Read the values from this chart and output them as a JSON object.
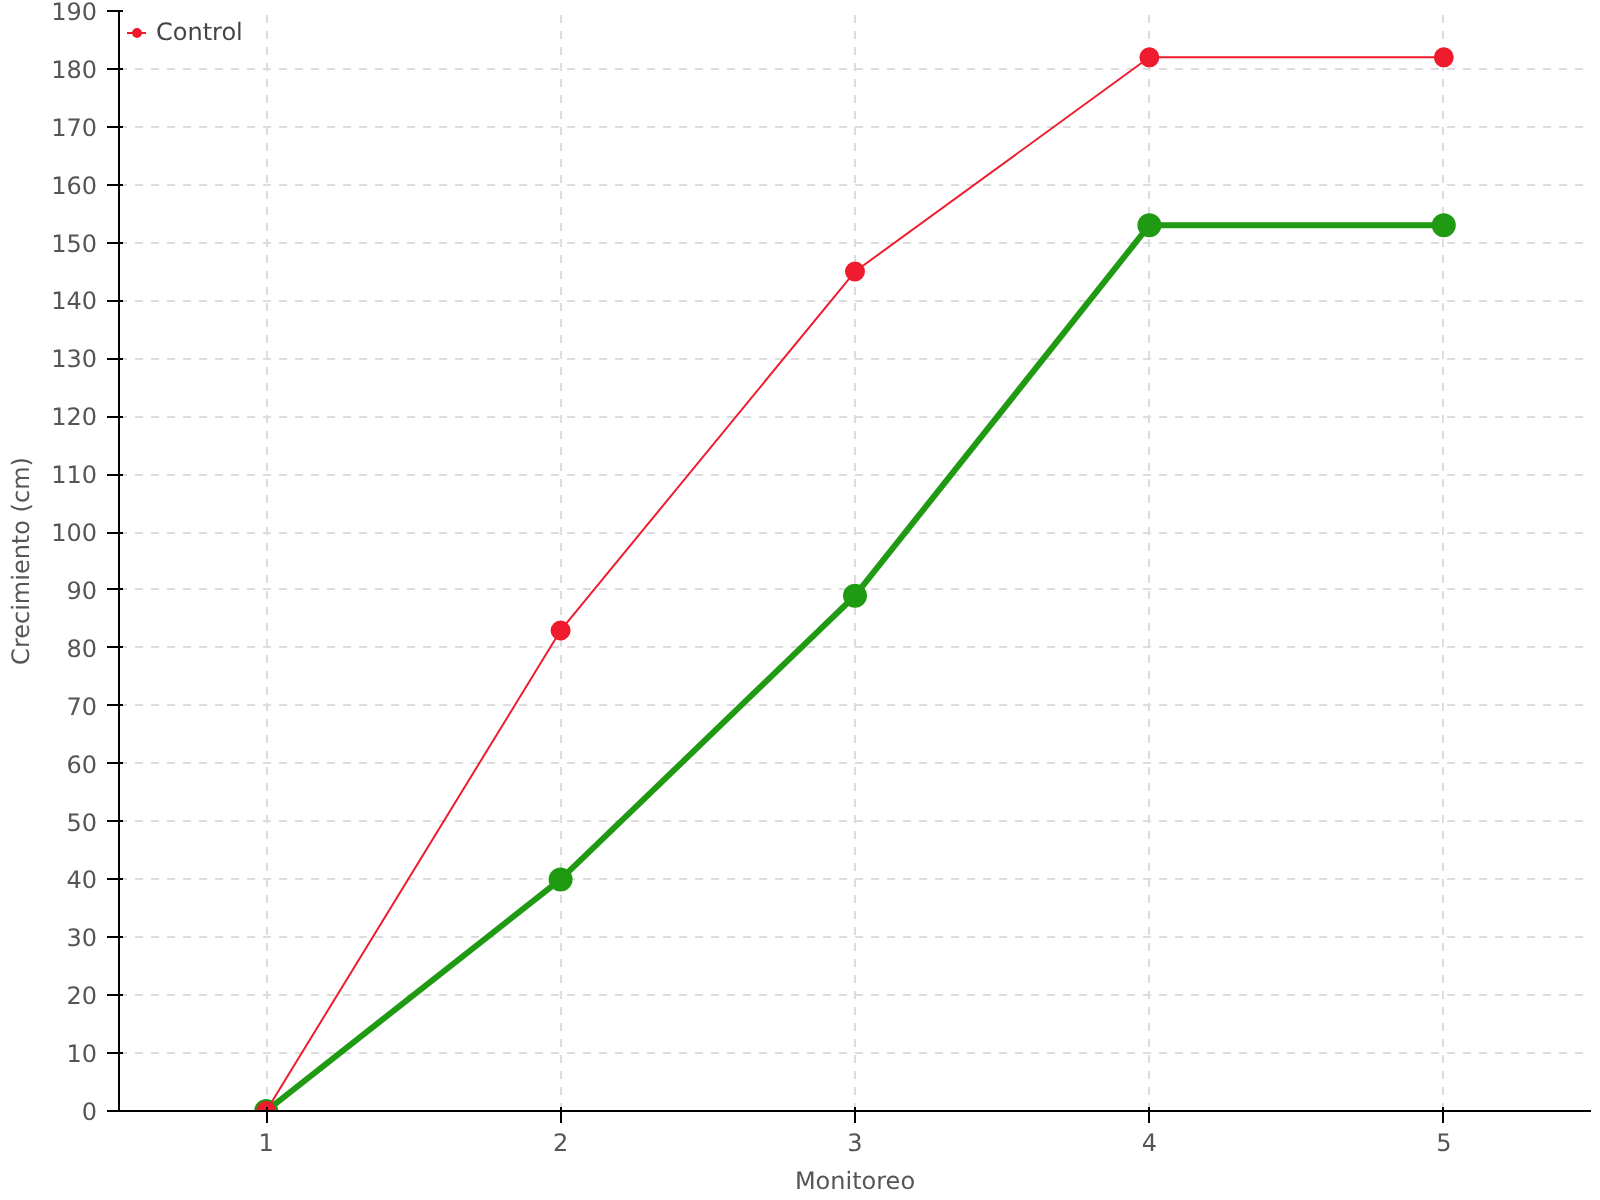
{
  "chart_data": {
    "type": "line",
    "xlabel": "Monitoreo",
    "ylabel": "Crecimiento (cm)",
    "x": [
      1,
      2,
      3,
      4,
      5
    ],
    "series": [
      {
        "color": "#1f9a12",
        "values": [
          0,
          40,
          89,
          153,
          153
        ]
      },
      {
        "name": "Control",
        "color": "#ee1c2e",
        "values": [
          0,
          83,
          145,
          182,
          182
        ]
      }
    ],
    "xlim": [
      0.5,
      5.5
    ],
    "xticks": [
      1,
      2,
      3,
      4,
      5
    ],
    "ylim": [
      0,
      190
    ],
    "yticks": [
      0,
      10,
      20,
      30,
      40,
      50,
      60,
      70,
      80,
      90,
      100,
      110,
      120,
      130,
      140,
      150,
      160,
      170,
      180,
      190
    ],
    "grid": true,
    "legend": "top left",
    "marker": "circle",
    "line_style": "solid"
  }
}
